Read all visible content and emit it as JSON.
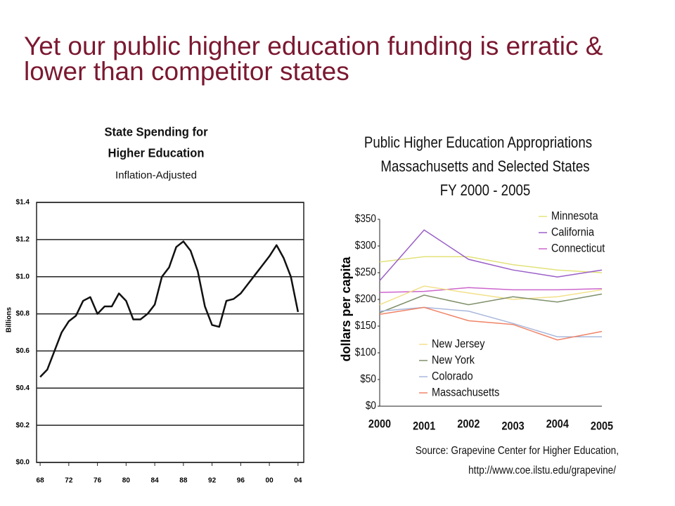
{
  "slide": {
    "title": "Yet our public higher education funding is erratic & lower than competitor states"
  },
  "chart_data": [
    {
      "type": "line",
      "title": [
        "State Spending for",
        "Higher Education"
      ],
      "subtitle": "Inflation-Adjusted",
      "y_label": "Billions",
      "x": [
        1968,
        1969,
        1970,
        1971,
        1972,
        1973,
        1974,
        1975,
        1976,
        1977,
        1978,
        1979,
        1980,
        1981,
        1982,
        1983,
        1984,
        1985,
        1986,
        1987,
        1988,
        1989,
        1990,
        1991,
        1992,
        1993,
        1994,
        1995,
        1996,
        1997,
        1998,
        1999,
        2000,
        2001,
        2002,
        2003,
        2004
      ],
      "series": [
        {
          "color": "#111111",
          "values": [
            0.46,
            0.5,
            0.6,
            0.7,
            0.76,
            0.79,
            0.87,
            0.89,
            0.8,
            0.84,
            0.84,
            0.91,
            0.87,
            0.77,
            0.77,
            0.8,
            0.85,
            1.0,
            1.05,
            1.16,
            1.19,
            1.14,
            1.03,
            0.84,
            0.74,
            0.73,
            0.87,
            0.88,
            0.91,
            0.96,
            1.01,
            1.06,
            1.11,
            1.17,
            1.1,
            1.0,
            0.81
          ]
        }
      ],
      "xlim": [
        1967.5,
        2004.8
      ],
      "xticks": [
        {
          "value": 1968,
          "label": "68"
        },
        {
          "value": 1972,
          "label": "72"
        },
        {
          "value": 1976,
          "label": "76"
        },
        {
          "value": 1980,
          "label": "80"
        },
        {
          "value": 1984,
          "label": "84"
        },
        {
          "value": 1988,
          "label": "88"
        },
        {
          "value": 1992,
          "label": "92"
        },
        {
          "value": 1996,
          "label": "96"
        },
        {
          "value": 2000,
          "label": "00"
        },
        {
          "value": 2004,
          "label": "04"
        }
      ],
      "ylim": [
        0,
        1.4
      ],
      "yticks": [
        {
          "value": 0,
          "label": "$0.0"
        },
        {
          "value": 0.2,
          "label": "$0.2"
        },
        {
          "value": 0.4,
          "label": "$0.4"
        },
        {
          "value": 0.6,
          "label": "$0.6"
        },
        {
          "value": 0.8,
          "label": "$0.8"
        },
        {
          "value": 1.0,
          "label": "$1.0"
        },
        {
          "value": 1.2,
          "label": "$1.2"
        },
        {
          "value": 1.4,
          "label": "$1.4"
        }
      ],
      "grid": true
    },
    {
      "type": "line",
      "title": [
        "Public Higher Education Appropriations",
        "Massachusetts and Selected States",
        "FY 2000 - 2005"
      ],
      "y_label": "dollars per capita",
      "categories": [
        "2000",
        "2001",
        "2002",
        "2003",
        "2004",
        "2005"
      ],
      "series": [
        {
          "name": "Minnesota",
          "color": "#e2e27a",
          "values": [
            270,
            280,
            280,
            265,
            255,
            250
          ]
        },
        {
          "name": "California",
          "color": "#9a5fc8",
          "values": [
            235,
            330,
            275,
            255,
            242,
            255
          ]
        },
        {
          "name": "Connecticut",
          "color": "#cc66cc",
          "values": [
            213,
            215,
            222,
            218,
            218,
            220
          ]
        },
        {
          "name": "New Jersey",
          "color": "#f2e08a",
          "values": [
            190,
            225,
            212,
            200,
            205,
            218
          ]
        },
        {
          "name": "New York",
          "color": "#7f8f6a",
          "values": [
            175,
            208,
            190,
            205,
            195,
            210
          ]
        },
        {
          "name": "Colorado",
          "color": "#a9b8dc",
          "values": [
            178,
            185,
            178,
            155,
            130,
            130
          ]
        },
        {
          "name": "Massachusetts",
          "color": "#f08468",
          "values": [
            172,
            185,
            160,
            153,
            124,
            140
          ]
        }
      ],
      "ylim": [
        0,
        350
      ],
      "yticks": [
        {
          "value": 0,
          "label": "$0"
        },
        {
          "value": 50,
          "label": "$50"
        },
        {
          "value": 100,
          "label": "$100"
        },
        {
          "value": 150,
          "label": "$150"
        },
        {
          "value": 200,
          "label": "$200"
        },
        {
          "value": 250,
          "label": "$250"
        },
        {
          "value": 300,
          "label": "$300"
        },
        {
          "value": 350,
          "label": "$350"
        }
      ],
      "grid": false,
      "source": [
        "Source: Grapevine Center for Higher Education,",
        "http://www.coe.ilstu.edu/grapevine/"
      ]
    }
  ]
}
